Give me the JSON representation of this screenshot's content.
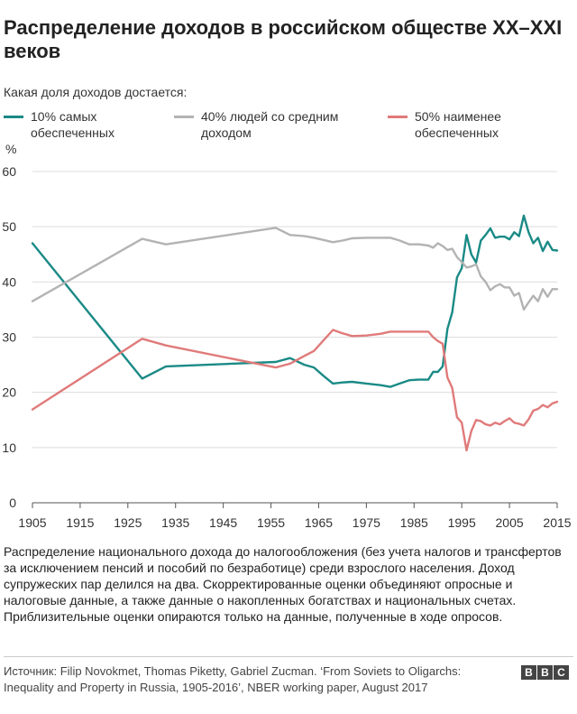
{
  "title": "Распределение доходов в российском обществе XX–XXI веков",
  "subtitle": "Какая доля доходов достается:",
  "legend": [
    {
      "label": "10% самых обеспеченных",
      "color": "#1a8a86"
    },
    {
      "label": "40% людей со средним доходом",
      "color": "#b3b3b3"
    },
    {
      "label": "50% наименее обеспеченных",
      "color": "#e07a7a"
    }
  ],
  "chart_data": {
    "type": "line",
    "ylabel": "%",
    "xlim": [
      1905,
      2015
    ],
    "ylim": [
      0,
      60
    ],
    "yticks": [
      0,
      10,
      20,
      30,
      40,
      50,
      60
    ],
    "xticks": [
      1905,
      1915,
      1925,
      1935,
      1945,
      1955,
      1965,
      1975,
      1985,
      1995,
      2005,
      2015
    ],
    "grid": "horizontal",
    "series": [
      {
        "name": "10% самых обеспеченных",
        "color": "#1a8a86",
        "x": [
          1905,
          1928,
          1933,
          1956,
          1959,
          1962,
          1964,
          1966,
          1968,
          1970,
          1972,
          1975,
          1978,
          1980,
          1982,
          1984,
          1986,
          1988,
          1989,
          1990,
          1991,
          1992,
          1993,
          1994,
          1995,
          1996,
          1997,
          1998,
          1999,
          2000,
          2001,
          2002,
          2003,
          2004,
          2005,
          2006,
          2007,
          2008,
          2009,
          2010,
          2011,
          2012,
          2013,
          2014,
          2015
        ],
        "y": [
          47,
          22.5,
          24.7,
          25.5,
          26.2,
          25,
          24.5,
          23,
          21.6,
          21.8,
          21.9,
          21.6,
          21.3,
          21,
          21.6,
          22.2,
          22.3,
          22.3,
          23.7,
          23.7,
          24.7,
          31.5,
          34.5,
          40.8,
          42.5,
          48.5,
          45,
          43.5,
          47.5,
          48.5,
          49.7,
          48,
          48.2,
          48.2,
          47.7,
          49,
          48.3,
          52,
          49,
          47,
          48,
          45.6,
          47.3,
          45.8,
          45.7
        ]
      },
      {
        "name": "40% людей со средним доходом",
        "color": "#b3b3b3",
        "x": [
          1905,
          1928,
          1933,
          1956,
          1959,
          1962,
          1964,
          1966,
          1968,
          1970,
          1972,
          1975,
          1978,
          1980,
          1982,
          1984,
          1986,
          1988,
          1989,
          1990,
          1991,
          1992,
          1993,
          1994,
          1995,
          1996,
          1997,
          1998,
          1999,
          2000,
          2001,
          2002,
          2003,
          2004,
          2005,
          2006,
          2007,
          2008,
          2009,
          2010,
          2011,
          2012,
          2013,
          2014,
          2015
        ],
        "y": [
          36.5,
          47.8,
          46.8,
          49.8,
          48.5,
          48.3,
          48,
          47.6,
          47.2,
          47.5,
          47.9,
          48,
          48,
          48,
          47.5,
          46.8,
          46.8,
          46.6,
          46.2,
          47,
          46.5,
          45.8,
          46,
          44.5,
          43.6,
          42.6,
          42.8,
          43.2,
          41,
          40,
          38.5,
          39.2,
          39.6,
          39,
          39,
          37.5,
          38,
          35,
          36.3,
          37.5,
          36.5,
          38.7,
          37.3,
          38.7,
          38.7
        ]
      },
      {
        "name": "50% наименее обеспеченных",
        "color": "#e07a7a",
        "x": [
          1905,
          1928,
          1933,
          1956,
          1959,
          1962,
          1964,
          1966,
          1968,
          1970,
          1972,
          1975,
          1978,
          1980,
          1982,
          1984,
          1986,
          1988,
          1989,
          1990,
          1991,
          1992,
          1993,
          1994,
          1995,
          1996,
          1997,
          1998,
          1999,
          2000,
          2001,
          2002,
          2003,
          2004,
          2005,
          2006,
          2007,
          2008,
          2009,
          2010,
          2011,
          2012,
          2013,
          2014,
          2015
        ],
        "y": [
          16.9,
          29.7,
          28.5,
          24.5,
          25.2,
          26.6,
          27.5,
          29.4,
          31.3,
          30.7,
          30.2,
          30.3,
          30.6,
          31,
          31,
          31,
          31,
          31,
          30,
          29.3,
          28.8,
          22.7,
          20.8,
          15.5,
          14.5,
          9.5,
          13,
          15,
          14.8,
          14.2,
          14,
          14.5,
          14.2,
          14.8,
          15.3,
          14.5,
          14.3,
          14,
          15.1,
          16.7,
          17,
          17.7,
          17.3,
          18,
          18.3
        ]
      }
    ]
  },
  "note": "Распределение национального дохода до налогообложения (без учета налогов и трансфертов за исключением пенсий и пособий по безработице) среди взрослого населения. Доход супружеских пар делился на два. Скорректированные оценки объединяют опросные и налоговые данные, а также данные о накопленных богатствах и национальных счетах. Приблизительные оценки опираются только на данные, полученные в ходе опросов.",
  "source": "Источник: Filip Novokmet, Thomas Piketty, Gabriel Zucman. ‘From Soviets to Oligarchs: Inequality and Property in Russia, 1905-2016’, NBER working paper, August 2017",
  "logo": [
    "B",
    "B",
    "C"
  ]
}
